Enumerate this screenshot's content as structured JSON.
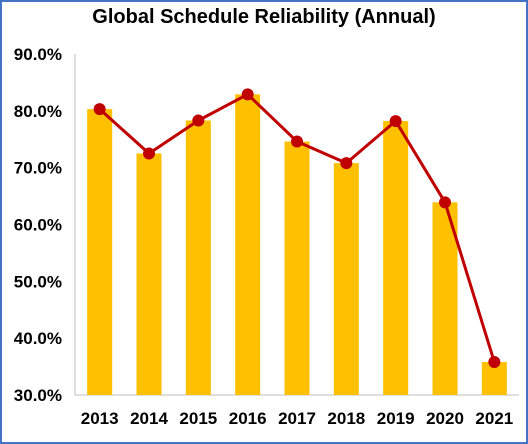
{
  "chart_data": {
    "type": "bar",
    "title": "Global Schedule Reliability (Annual)",
    "categories": [
      "2013",
      "2014",
      "2015",
      "2016",
      "2017",
      "2018",
      "2019",
      "2020",
      "2021"
    ],
    "values": [
      80.3,
      72.5,
      78.3,
      82.9,
      74.6,
      70.8,
      78.2,
      63.9,
      35.8
    ],
    "line_values": [
      80.3,
      72.5,
      78.3,
      82.9,
      74.6,
      70.8,
      78.2,
      63.9,
      35.8
    ],
    "ylim": [
      30,
      90
    ],
    "yticks": [
      30,
      40,
      50,
      60,
      70,
      80,
      90
    ],
    "ytick_labels": [
      "30.0%",
      "40.0%",
      "50.0%",
      "60.0%",
      "70.0%",
      "80.0%",
      "90.0%"
    ],
    "grid": false,
    "xlabel": "",
    "ylabel": "",
    "bar_color": "#ffc000",
    "line_color": "#c00000",
    "marker_color": "#c00000"
  },
  "frame_color": "#4472c4"
}
